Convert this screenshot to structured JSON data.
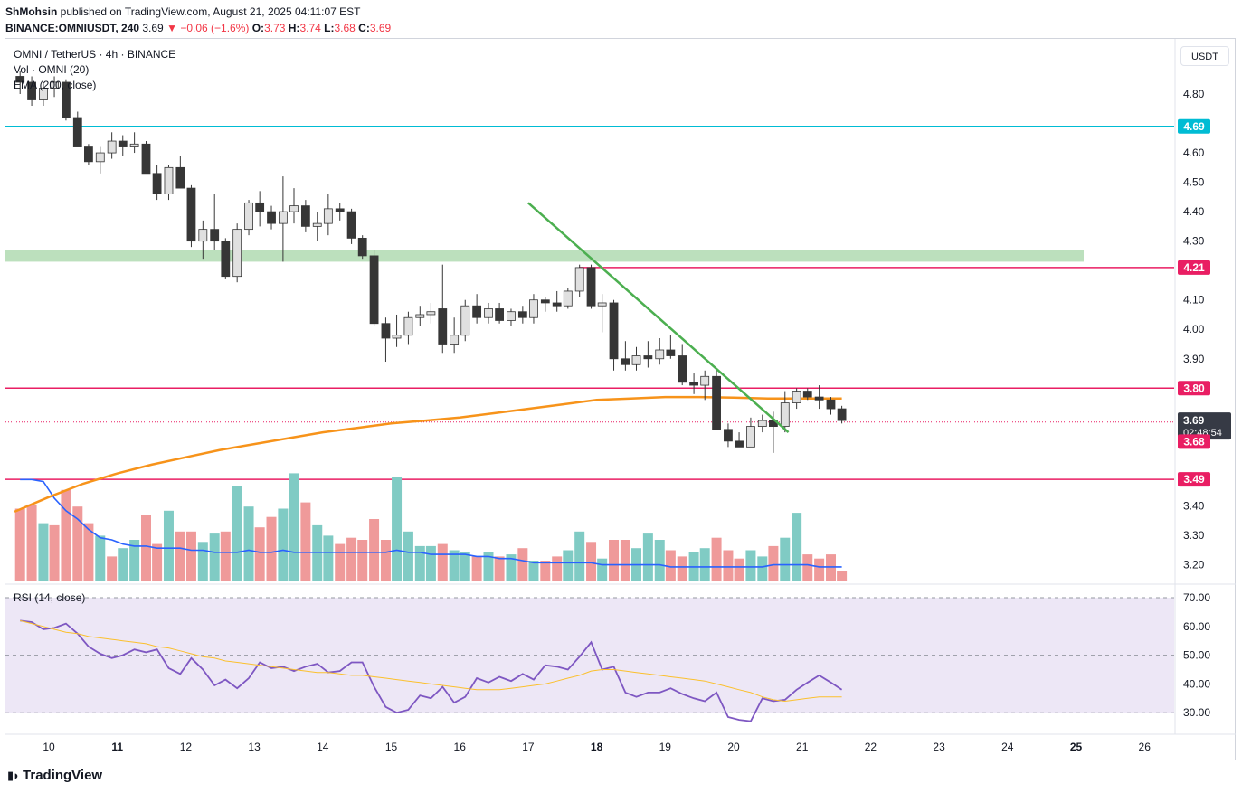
{
  "header": {
    "publisher": "ShMohsin",
    "published_text": "published on TradingView.com, August 21, 2025 04:11:07 EST",
    "symbol": "BINANCE:OMNIUSDT, 240",
    "last": "3.69",
    "change": "−0.06 (−1.6%)",
    "o_label": "O:",
    "o": "3.73",
    "h_label": "H:",
    "h": "3.74",
    "l_label": "L:",
    "l": "3.68",
    "c_label": "C:",
    "c": "3.69"
  },
  "legend": {
    "title": "OMNI / TetherUS · 4h · BINANCE",
    "vol": "Vol · OMNI (20)",
    "ema": "EMA (200, close)",
    "rsi": "RSI (14, close)"
  },
  "currency_button": "USDT",
  "footer": {
    "brand": "TradingView"
  },
  "colors": {
    "up": "#e0e0e0",
    "down": "#363636",
    "candle_border": "#363636",
    "ema": "#f7931a",
    "trendline": "#4caf50",
    "zone": "#a5d6a7",
    "level_pink": "#e91e63",
    "level_teal": "#00bcd4",
    "vol_up": "#80cbc4",
    "vol_down": "#ef9a9a",
    "vol_ma": "#2962ff",
    "rsi_line": "#7e57c2",
    "rsi_ma": "#fbc02d",
    "rsi_band": "#ede7f6"
  },
  "chart_data": {
    "type": "candlestick",
    "price_axis": {
      "ticks": [
        "4.80",
        "4.60",
        "4.50",
        "4.40",
        "4.30",
        "4.10",
        "4.00",
        "3.90",
        "3.40",
        "3.30",
        "3.20"
      ],
      "range": [
        3.15,
        4.92
      ]
    },
    "level_labels": [
      {
        "value": 4.69,
        "label": "4.69",
        "color": "#00bcd4"
      },
      {
        "value": 4.21,
        "label": "4.21",
        "color": "#e91e63"
      },
      {
        "value": 3.8,
        "label": "3.80",
        "color": "#e91e63"
      },
      {
        "value": 3.68,
        "label": "3.68",
        "color": "#e91e63"
      },
      {
        "value": 3.49,
        "label": "3.49",
        "color": "#e91e63"
      }
    ],
    "last_price": {
      "value": 3.69,
      "label": "3.69",
      "countdown": "02:48:54"
    },
    "support_zone": [
      4.23,
      4.27
    ],
    "x_axis": {
      "ticks": [
        "10",
        "11",
        "12",
        "13",
        "14",
        "15",
        "16",
        "17",
        "18",
        "19",
        "20",
        "21",
        "22",
        "23",
        "24",
        "25",
        "26"
      ],
      "bold": [
        "11",
        "18",
        "25"
      ]
    },
    "trendline": {
      "from": [
        17.0,
        4.43
      ],
      "to": [
        20.8,
        3.65
      ]
    },
    "candles": [
      [
        9.58,
        4.86,
        4.88,
        4.8,
        4.84
      ],
      [
        9.75,
        4.84,
        4.86,
        4.76,
        4.78
      ],
      [
        9.92,
        4.78,
        4.84,
        4.76,
        4.82
      ],
      [
        10.08,
        4.82,
        4.86,
        4.79,
        4.84
      ],
      [
        10.25,
        4.84,
        4.85,
        4.71,
        4.72
      ],
      [
        10.42,
        4.72,
        4.74,
        4.62,
        4.62
      ],
      [
        10.58,
        4.62,
        4.63,
        4.56,
        4.57
      ],
      [
        10.75,
        4.57,
        4.62,
        4.53,
        4.6
      ],
      [
        10.92,
        4.6,
        4.67,
        4.58,
        4.64
      ],
      [
        11.08,
        4.64,
        4.66,
        4.59,
        4.62
      ],
      [
        11.25,
        4.62,
        4.67,
        4.6,
        4.63
      ],
      [
        11.42,
        4.63,
        4.64,
        4.53,
        4.53
      ],
      [
        11.58,
        4.53,
        4.56,
        4.44,
        4.46
      ],
      [
        11.75,
        4.46,
        4.56,
        4.44,
        4.55
      ],
      [
        11.92,
        4.55,
        4.59,
        4.48,
        4.48
      ],
      [
        12.08,
        4.48,
        4.49,
        4.28,
        4.3
      ],
      [
        12.25,
        4.3,
        4.37,
        4.24,
        4.34
      ],
      [
        12.42,
        4.34,
        4.46,
        4.27,
        4.3
      ],
      [
        12.58,
        4.3,
        4.31,
        4.17,
        4.18
      ],
      [
        12.75,
        4.18,
        4.36,
        4.16,
        4.34
      ],
      [
        12.92,
        4.34,
        4.44,
        4.32,
        4.43
      ],
      [
        13.08,
        4.43,
        4.47,
        4.35,
        4.4
      ],
      [
        13.25,
        4.4,
        4.42,
        4.34,
        4.36
      ],
      [
        13.42,
        4.36,
        4.52,
        4.23,
        4.4
      ],
      [
        13.58,
        4.4,
        4.48,
        4.36,
        4.42
      ],
      [
        13.75,
        4.42,
        4.44,
        4.33,
        4.35
      ],
      [
        13.92,
        4.35,
        4.4,
        4.3,
        4.36
      ],
      [
        14.08,
        4.36,
        4.46,
        4.32,
        4.41
      ],
      [
        14.25,
        4.41,
        4.43,
        4.37,
        4.4
      ],
      [
        14.42,
        4.4,
        4.41,
        4.29,
        4.31
      ],
      [
        14.58,
        4.31,
        4.32,
        4.24,
        4.25
      ],
      [
        14.75,
        4.25,
        4.27,
        4.01,
        4.02
      ],
      [
        14.92,
        4.02,
        4.04,
        3.89,
        3.97
      ],
      [
        15.08,
        3.97,
        4.05,
        3.94,
        3.98
      ],
      [
        15.25,
        3.98,
        4.06,
        3.95,
        4.04
      ],
      [
        15.42,
        4.04,
        4.08,
        4.01,
        4.05
      ],
      [
        15.58,
        4.05,
        4.09,
        4.02,
        4.06
      ],
      [
        15.75,
        4.07,
        4.22,
        3.92,
        3.95
      ],
      [
        15.92,
        3.95,
        4.04,
        3.92,
        3.98
      ],
      [
        16.08,
        3.98,
        4.1,
        3.96,
        4.08
      ],
      [
        16.25,
        4.08,
        4.12,
        4.02,
        4.04
      ],
      [
        16.42,
        4.04,
        4.09,
        4.02,
        4.07
      ],
      [
        16.58,
        4.07,
        4.09,
        4.02,
        4.03
      ],
      [
        16.75,
        4.03,
        4.07,
        4.01,
        4.06
      ],
      [
        16.92,
        4.06,
        4.08,
        4.02,
        4.04
      ],
      [
        17.08,
        4.04,
        4.12,
        4.02,
        4.1
      ],
      [
        17.25,
        4.1,
        4.11,
        4.06,
        4.09
      ],
      [
        17.42,
        4.09,
        4.13,
        4.06,
        4.08
      ],
      [
        17.58,
        4.08,
        4.14,
        4.07,
        4.13
      ],
      [
        17.75,
        4.13,
        4.22,
        4.11,
        4.21
      ],
      [
        17.92,
        4.21,
        4.22,
        4.07,
        4.08
      ],
      [
        18.08,
        4.08,
        4.12,
        3.99,
        4.09
      ],
      [
        18.25,
        4.09,
        4.1,
        3.86,
        3.9
      ],
      [
        18.42,
        3.9,
        3.96,
        3.86,
        3.88
      ],
      [
        18.58,
        3.88,
        3.94,
        3.86,
        3.91
      ],
      [
        18.75,
        3.91,
        3.96,
        3.87,
        3.9
      ],
      [
        18.92,
        3.9,
        3.97,
        3.88,
        3.93
      ],
      [
        19.08,
        3.93,
        3.98,
        3.9,
        3.91
      ],
      [
        19.25,
        3.91,
        3.95,
        3.81,
        3.82
      ],
      [
        19.42,
        3.82,
        3.85,
        3.78,
        3.81
      ],
      [
        19.58,
        3.81,
        3.86,
        3.76,
        3.84
      ],
      [
        19.75,
        3.84,
        3.86,
        3.66,
        3.66
      ],
      [
        19.92,
        3.66,
        3.68,
        3.6,
        3.62
      ],
      [
        20.08,
        3.62,
        3.65,
        3.6,
        3.6
      ],
      [
        20.25,
        3.6,
        3.7,
        3.6,
        3.67
      ],
      [
        20.42,
        3.67,
        3.71,
        3.65,
        3.69
      ],
      [
        20.58,
        3.69,
        3.72,
        3.58,
        3.67
      ],
      [
        20.75,
        3.67,
        3.79,
        3.65,
        3.75
      ],
      [
        20.92,
        3.75,
        3.8,
        3.73,
        3.79
      ],
      [
        21.08,
        3.79,
        3.8,
        3.76,
        3.77
      ],
      [
        21.25,
        3.77,
        3.81,
        3.73,
        3.76
      ],
      [
        21.42,
        3.76,
        3.77,
        3.71,
        3.73
      ],
      [
        21.58,
        3.73,
        3.74,
        3.68,
        3.69
      ]
    ],
    "volume_up_flags": [
      0,
      0,
      1,
      0,
      0,
      0,
      0,
      1,
      0,
      1,
      1,
      0,
      0,
      1,
      0,
      0,
      1,
      1,
      0,
      1,
      1,
      0,
      0,
      1,
      1,
      0,
      1,
      1,
      0,
      0,
      0,
      0,
      0,
      1,
      1,
      1,
      1,
      0,
      1,
      1,
      0,
      1,
      0,
      1,
      0,
      1,
      0,
      0,
      1,
      1,
      0,
      1,
      0,
      0,
      1,
      1,
      1,
      0,
      0,
      1,
      1,
      0,
      0,
      0,
      1,
      1,
      0,
      1,
      1,
      0,
      0,
      0,
      0
    ],
    "volume_heights": [
      0.35,
      0.37,
      0.28,
      0.27,
      0.44,
      0.36,
      0.28,
      0.22,
      0.12,
      0.16,
      0.2,
      0.32,
      0.18,
      0.34,
      0.24,
      0.24,
      0.19,
      0.23,
      0.24,
      0.46,
      0.36,
      0.26,
      0.31,
      0.35,
      0.52,
      0.38,
      0.27,
      0.22,
      0.18,
      0.21,
      0.2,
      0.3,
      0.2,
      0.5,
      0.24,
      0.17,
      0.17,
      0.18,
      0.15,
      0.14,
      0.12,
      0.14,
      0.12,
      0.13,
      0.16,
      0.1,
      0.1,
      0.12,
      0.15,
      0.24,
      0.19,
      0.11,
      0.2,
      0.2,
      0.16,
      0.23,
      0.2,
      0.15,
      0.12,
      0.14,
      0.16,
      0.21,
      0.15,
      0.11,
      0.15,
      0.12,
      0.17,
      0.21,
      0.33,
      0.13,
      0.11,
      0.13,
      0.05
    ],
    "volume_ma": [
      0.49,
      0.49,
      0.48,
      0.4,
      0.34,
      0.3,
      0.25,
      0.21,
      0.2,
      0.18,
      0.17,
      0.17,
      0.16,
      0.16,
      0.16,
      0.15,
      0.15,
      0.14,
      0.14,
      0.14,
      0.15,
      0.14,
      0.14,
      0.15,
      0.14,
      0.14,
      0.14,
      0.14,
      0.14,
      0.14,
      0.14,
      0.14,
      0.14,
      0.15,
      0.14,
      0.14,
      0.13,
      0.13,
      0.13,
      0.13,
      0.12,
      0.12,
      0.11,
      0.11,
      0.1,
      0.09,
      0.09,
      0.09,
      0.09,
      0.09,
      0.09,
      0.08,
      0.08,
      0.08,
      0.08,
      0.08,
      0.08,
      0.07,
      0.07,
      0.07,
      0.07,
      0.07,
      0.07,
      0.07,
      0.07,
      0.07,
      0.08,
      0.08,
      0.08,
      0.08,
      0.07,
      0.07,
      0.07
    ],
    "ema": [
      [
        9.5,
        3.38
      ],
      [
        10.0,
        3.43
      ],
      [
        10.5,
        3.475
      ],
      [
        11.0,
        3.51
      ],
      [
        11.5,
        3.54
      ],
      [
        12.0,
        3.565
      ],
      [
        12.5,
        3.59
      ],
      [
        13.0,
        3.61
      ],
      [
        13.5,
        3.63
      ],
      [
        14.0,
        3.65
      ],
      [
        14.5,
        3.665
      ],
      [
        15.0,
        3.68
      ],
      [
        15.5,
        3.69
      ],
      [
        16.0,
        3.7
      ],
      [
        16.5,
        3.715
      ],
      [
        17.0,
        3.73
      ],
      [
        17.5,
        3.745
      ],
      [
        18.0,
        3.76
      ],
      [
        18.5,
        3.765
      ],
      [
        19.0,
        3.77
      ],
      [
        19.5,
        3.77
      ],
      [
        20.0,
        3.768
      ],
      [
        20.5,
        3.765
      ],
      [
        21.0,
        3.765
      ],
      [
        21.58,
        3.765
      ]
    ],
    "rsi_axis": {
      "ticks": [
        "70.00",
        "60.00",
        "50.00",
        "40.00",
        "30.00"
      ],
      "band": [
        30,
        70
      ]
    },
    "rsi": [
      62.0,
      61.5,
      59.0,
      59.5,
      61.0,
      57.5,
      53.0,
      50.5,
      49.0,
      50.0,
      52.0,
      51.0,
      52.0,
      45.5,
      43.5,
      49.0,
      45.0,
      39.5,
      41.5,
      38.5,
      42.0,
      47.5,
      45.5,
      46.0,
      44.5,
      46.0,
      47.0,
      44.0,
      44.5,
      47.5,
      47.5,
      39.0,
      32.0,
      30.0,
      31.0,
      36.0,
      35.0,
      39.0,
      33.5,
      35.5,
      42.0,
      40.5,
      42.5,
      41.0,
      43.5,
      41.5,
      46.5,
      46.0,
      45.0,
      49.5,
      54.5,
      45.0,
      46.0,
      37.0,
      35.5,
      37.0,
      37.0,
      38.5,
      36.5,
      35.0,
      34.0,
      37.0,
      28.5,
      27.5,
      27.0,
      35.0,
      34.0,
      34.5,
      38.0,
      40.5,
      43.0,
      40.5,
      38.0
    ],
    "rsi_ma": [
      62.0,
      61.0,
      60.0,
      59.0,
      58.0,
      57.5,
      56.5,
      56.0,
      55.5,
      55.0,
      54.5,
      54.0,
      53.0,
      52.5,
      51.5,
      50.5,
      49.5,
      49.0,
      48.0,
      47.5,
      47.0,
      46.5,
      46.0,
      45.5,
      45.0,
      44.5,
      44.0,
      44.0,
      43.5,
      43.0,
      43.0,
      42.5,
      42.0,
      41.5,
      41.0,
      40.5,
      40.0,
      39.5,
      39.0,
      38.5,
      38.0,
      38.0,
      38.0,
      38.5,
      39.0,
      39.5,
      40.0,
      41.0,
      42.0,
      43.0,
      44.5,
      45.0,
      45.0,
      44.5,
      44.0,
      43.5,
      43.0,
      42.5,
      42.0,
      41.5,
      41.0,
      40.0,
      39.0,
      38.0,
      37.0,
      35.5,
      34.5,
      34.0,
      34.5,
      35.0,
      35.5,
      35.5,
      35.5
    ]
  }
}
